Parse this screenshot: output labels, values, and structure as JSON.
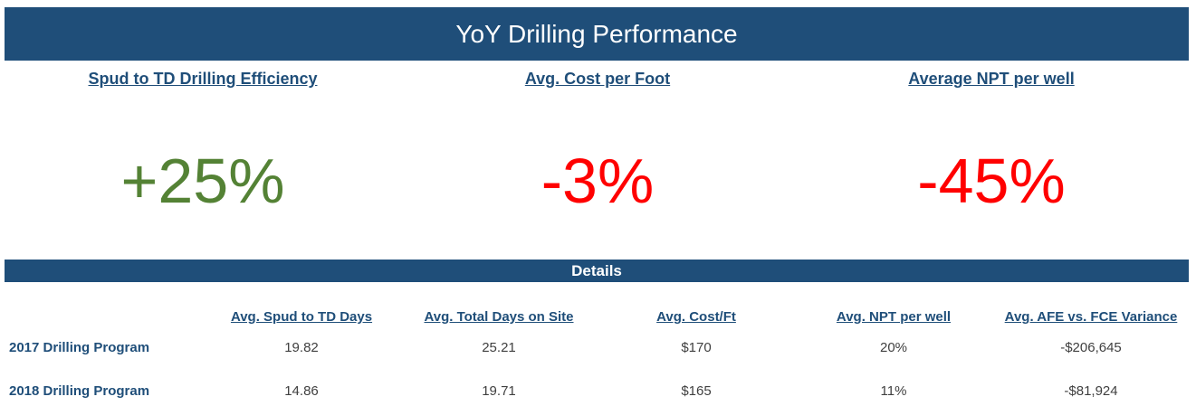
{
  "header": {
    "title": "YoY Drilling Performance"
  },
  "kpis": [
    {
      "label": "Spud to TD Drilling Efficiency",
      "value": "+25%",
      "color": "#548235"
    },
    {
      "label": "Avg. Cost per Foot",
      "value": "-3%",
      "color": "#ff0000"
    },
    {
      "label": "Average NPT per well",
      "value": "-45%",
      "color": "#ff0000"
    }
  ],
  "details": {
    "title": "Details",
    "columns": [
      "Avg. Spud to TD Days",
      "Avg. Total Days on Site",
      "Avg. Cost/Ft",
      "Avg. NPT per well",
      "Avg. AFE vs. FCE Variance"
    ],
    "rows": [
      {
        "label": "2017 Drilling Program",
        "cells": [
          "19.82",
          "25.21",
          "$170",
          "20%",
          "-$206,645"
        ]
      },
      {
        "label": "2018 Drilling Program",
        "cells": [
          "14.86",
          "19.71",
          "$165",
          "11%",
          "-$81,924"
        ]
      }
    ]
  }
}
